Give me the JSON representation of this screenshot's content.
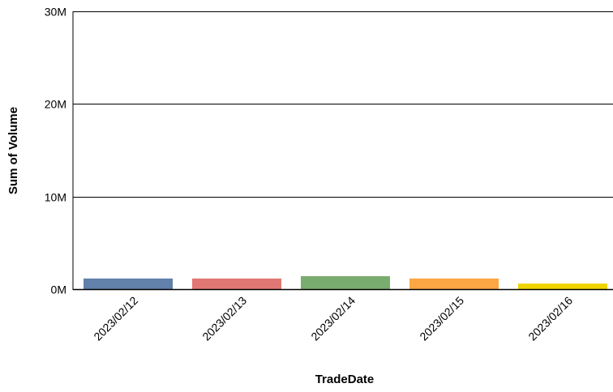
{
  "chart_data": {
    "type": "bar",
    "title": "",
    "xlabel": "TradeDate",
    "ylabel": "Sum of Volume",
    "categories": [
      "2023/02/12",
      "2023/02/13",
      "2023/02/14",
      "2023/02/15",
      "2023/02/16"
    ],
    "values": [
      1150000,
      1150000,
      1400000,
      1150000,
      600000
    ],
    "bar_colors": [
      "#6180aa",
      "#e17773",
      "#79ad6f",
      "#fca644",
      "#f0d400"
    ],
    "ylim": [
      0,
      30000000
    ],
    "yticks": [
      {
        "value": 0,
        "label": "0M"
      },
      {
        "value": 10000000,
        "label": "10M"
      },
      {
        "value": 20000000,
        "label": "20M"
      },
      {
        "value": 30000000,
        "label": "30M"
      }
    ],
    "grid": true,
    "legend": "none"
  }
}
